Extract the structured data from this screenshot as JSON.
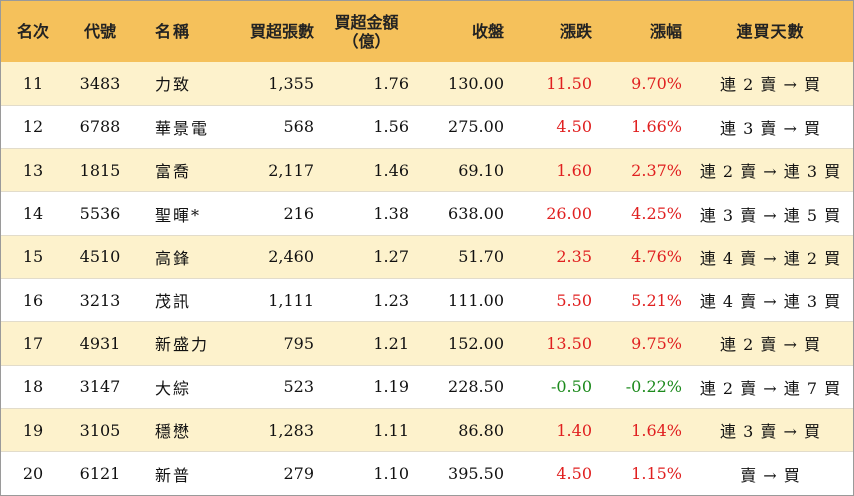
{
  "columns": {
    "rank": "名次",
    "code": "代號",
    "name": "名稱",
    "net_buy_lots": "買超張數",
    "net_buy_amount_line1": "買超金額",
    "net_buy_amount_line2": "（億）",
    "close": "收盤",
    "change": "漲跌",
    "change_pct": "漲幅",
    "consecutive_days": "連買天數"
  },
  "colors": {
    "header_bg": "#f5c15b",
    "odd_row_bg": "#fdf2cc",
    "up": "#e02020",
    "down": "#1c8a1c"
  },
  "rows": [
    {
      "rank": "11",
      "code": "3483",
      "name": "力致",
      "lots": "1,355",
      "amount": "1.76",
      "close": "130.00",
      "change": "11.50",
      "pct": "9.70%",
      "days": "連 2 賣 → 買",
      "dir": "up"
    },
    {
      "rank": "12",
      "code": "6788",
      "name": "華景電",
      "lots": "568",
      "amount": "1.56",
      "close": "275.00",
      "change": "4.50",
      "pct": "1.66%",
      "days": "連 3 賣 → 買",
      "dir": "up"
    },
    {
      "rank": "13",
      "code": "1815",
      "name": "富喬",
      "lots": "2,117",
      "amount": "1.46",
      "close": "69.10",
      "change": "1.60",
      "pct": "2.37%",
      "days": "連 2 賣 → 連 3 買",
      "dir": "up"
    },
    {
      "rank": "14",
      "code": "5536",
      "name": "聖暉*",
      "lots": "216",
      "amount": "1.38",
      "close": "638.00",
      "change": "26.00",
      "pct": "4.25%",
      "days": "連 3 賣 → 連 5 買",
      "dir": "up"
    },
    {
      "rank": "15",
      "code": "4510",
      "name": "高鋒",
      "lots": "2,460",
      "amount": "1.27",
      "close": "51.70",
      "change": "2.35",
      "pct": "4.76%",
      "days": "連 4 賣 → 連 2 買",
      "dir": "up"
    },
    {
      "rank": "16",
      "code": "3213",
      "name": "茂訊",
      "lots": "1,111",
      "amount": "1.23",
      "close": "111.00",
      "change": "5.50",
      "pct": "5.21%",
      "days": "連 4 賣 → 連 3 買",
      "dir": "up"
    },
    {
      "rank": "17",
      "code": "4931",
      "name": "新盛力",
      "lots": "795",
      "amount": "1.21",
      "close": "152.00",
      "change": "13.50",
      "pct": "9.75%",
      "days": "連 2 賣 → 買",
      "dir": "up"
    },
    {
      "rank": "18",
      "code": "3147",
      "name": "大綜",
      "lots": "523",
      "amount": "1.19",
      "close": "228.50",
      "change": "-0.50",
      "pct": "-0.22%",
      "days": "連 2 賣 → 連 7 買",
      "dir": "down"
    },
    {
      "rank": "19",
      "code": "3105",
      "name": "穩懋",
      "lots": "1,283",
      "amount": "1.11",
      "close": "86.80",
      "change": "1.40",
      "pct": "1.64%",
      "days": "連 3 賣 → 買",
      "dir": "up"
    },
    {
      "rank": "20",
      "code": "6121",
      "name": "新普",
      "lots": "279",
      "amount": "1.10",
      "close": "395.50",
      "change": "4.50",
      "pct": "1.15%",
      "days": "賣 → 買",
      "dir": "up"
    }
  ]
}
